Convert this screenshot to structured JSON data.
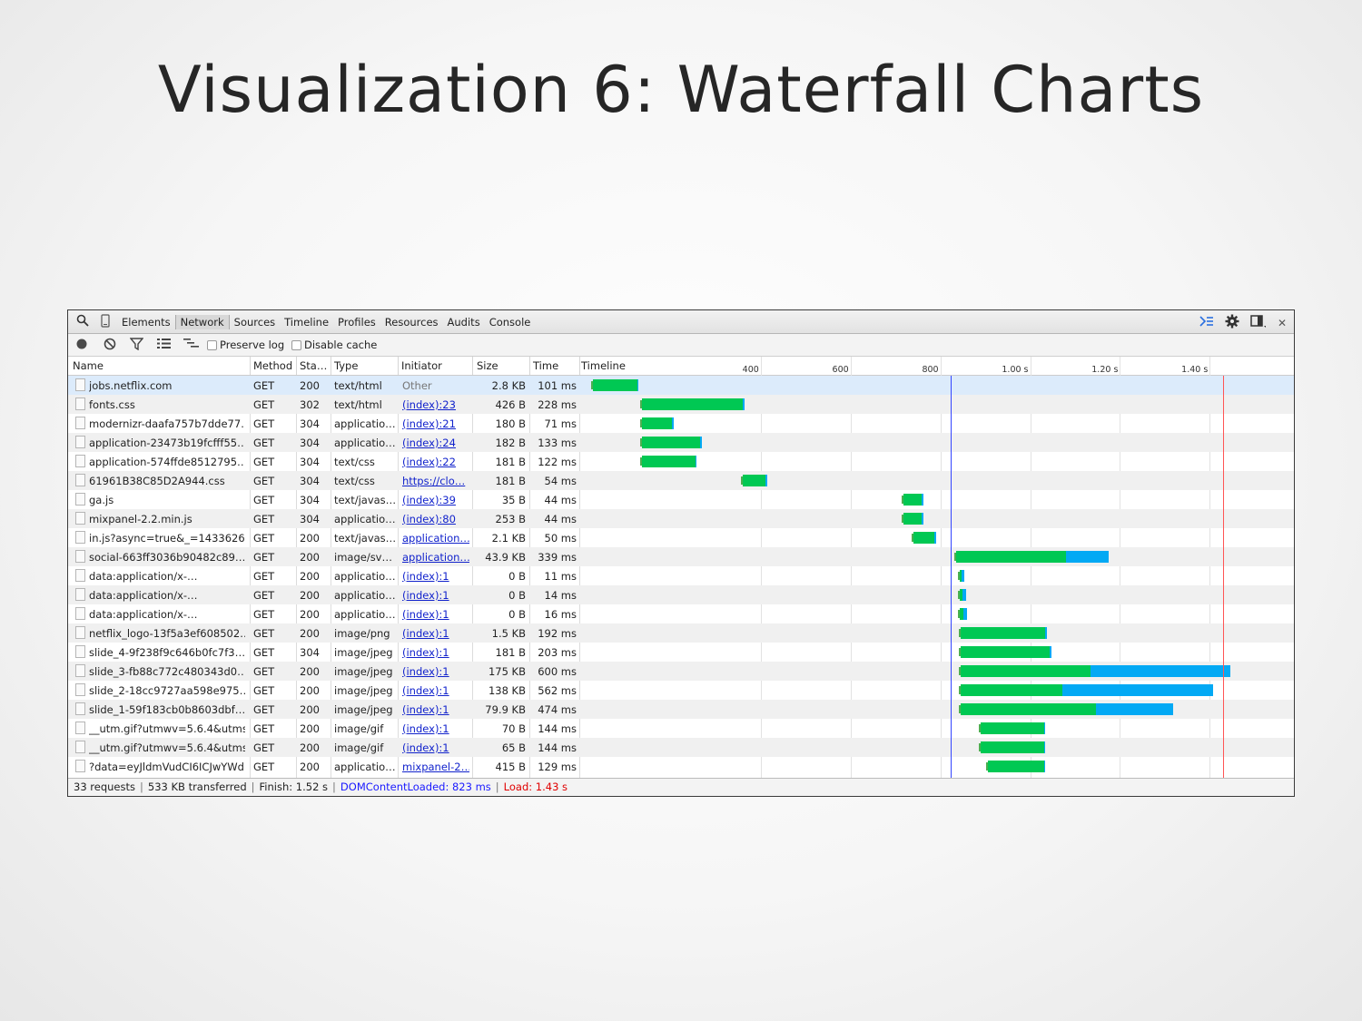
{
  "slide": {
    "title": "Visualization 6: Waterfall Charts"
  },
  "tabs": [
    "Elements",
    "Network",
    "Sources",
    "Timeline",
    "Profiles",
    "Resources",
    "Audits",
    "Console"
  ],
  "active_tab": "Network",
  "toolbar": {
    "preserve_log": "Preserve log",
    "disable_cache": "Disable cache"
  },
  "columns": {
    "name": "Name",
    "method": "Method",
    "status": "Sta…",
    "type": "Type",
    "initiator": "Initiator",
    "size": "Size",
    "time": "Time",
    "timeline": "Timeline"
  },
  "timeline_ticks": [
    {
      "label": "400 ms",
      "ms": 400
    },
    {
      "label": "600 ms",
      "ms": 600
    },
    {
      "label": "800 ms",
      "ms": 800
    },
    {
      "label": "1.00 s",
      "ms": 1000
    },
    {
      "label": "1.20 s",
      "ms": 1200
    },
    {
      "label": "1.40 s",
      "ms": 1400
    }
  ],
  "markers": {
    "dom_content_loaded_ms": 823,
    "load_ms": 1430
  },
  "requests": [
    {
      "name": "jobs.netflix.com",
      "method": "GET",
      "status": "200",
      "type": "text/html",
      "initiator": "Other",
      "initiator_link": false,
      "size": "2.8 KB",
      "time": "101 ms",
      "start_ms": 26,
      "wait_ms": 99,
      "recv_ms": 3
    },
    {
      "name": "fonts.css",
      "method": "GET",
      "status": "302",
      "type": "text/html",
      "initiator": "(index):23",
      "initiator_link": true,
      "size": "426 B",
      "time": "228 ms",
      "start_ms": 136,
      "wait_ms": 224,
      "recv_ms": 4
    },
    {
      "name": "modernizr-daafa757b7dde77…",
      "method": "GET",
      "status": "304",
      "type": "applicatio…",
      "initiator": "(index):21",
      "initiator_link": true,
      "size": "180 B",
      "time": "71 ms",
      "start_ms": 135,
      "wait_ms": 68,
      "recv_ms": 3
    },
    {
      "name": "application-23473b19fcfff55…",
      "method": "GET",
      "status": "304",
      "type": "applicatio…",
      "initiator": "(index):24",
      "initiator_link": true,
      "size": "182 B",
      "time": "133 ms",
      "start_ms": 135,
      "wait_ms": 130,
      "recv_ms": 3
    },
    {
      "name": "application-574ffde8512795…",
      "method": "GET",
      "status": "304",
      "type": "text/css",
      "initiator": "(index):22",
      "initiator_link": true,
      "size": "181 B",
      "time": "122 ms",
      "start_ms": 135,
      "wait_ms": 119,
      "recv_ms": 3
    },
    {
      "name": "61961B38C85D2A944.css",
      "method": "GET",
      "status": "304",
      "type": "text/css",
      "initiator": "https://clo…",
      "initiator_link": true,
      "size": "181 B",
      "time": "54 ms",
      "start_ms": 360,
      "wait_ms": 51,
      "recv_ms": 3
    },
    {
      "name": "ga.js",
      "method": "GET",
      "status": "304",
      "type": "text/javas…",
      "initiator": "(index):39",
      "initiator_link": true,
      "size": "35 B",
      "time": "44 ms",
      "start_ms": 718,
      "wait_ms": 41,
      "recv_ms": 3
    },
    {
      "name": "mixpanel-2.2.min.js",
      "method": "GET",
      "status": "304",
      "type": "applicatio…",
      "initiator": "(index):80",
      "initiator_link": true,
      "size": "253 B",
      "time": "44 ms",
      "start_ms": 718,
      "wait_ms": 41,
      "recv_ms": 3
    },
    {
      "name": "in.js?async=true&_=1433626…",
      "method": "GET",
      "status": "200",
      "type": "text/javas…",
      "initiator": "application…",
      "initiator_link": true,
      "size": "2.1 KB",
      "time": "50 ms",
      "start_ms": 740,
      "wait_ms": 46,
      "recv_ms": 4
    },
    {
      "name": "social-663ff3036b90482c89…",
      "method": "GET",
      "status": "200",
      "type": "image/sv…",
      "initiator": "application…",
      "initiator_link": true,
      "size": "43.9 KB",
      "time": "339 ms",
      "start_ms": 835,
      "wait_ms": 245,
      "recv_ms": 94
    },
    {
      "name": "data:application/x-…",
      "method": "GET",
      "status": "200",
      "type": "applicatio…",
      "initiator": "(index):1",
      "initiator_link": true,
      "size": "0 B",
      "time": "11 ms",
      "start_ms": 843,
      "wait_ms": 5,
      "recv_ms": 6
    },
    {
      "name": "data:application/x-…",
      "method": "GET",
      "status": "200",
      "type": "applicatio…",
      "initiator": "(index):1",
      "initiator_link": true,
      "size": "0 B",
      "time": "14 ms",
      "start_ms": 843,
      "wait_ms": 7,
      "recv_ms": 7
    },
    {
      "name": "data:application/x-…",
      "method": "GET",
      "status": "200",
      "type": "applicatio…",
      "initiator": "(index):1",
      "initiator_link": true,
      "size": "0 B",
      "time": "16 ms",
      "start_ms": 843,
      "wait_ms": 9,
      "recv_ms": 7
    },
    {
      "name": "netflix_logo-13f5a3ef608502…",
      "method": "GET",
      "status": "200",
      "type": "image/png",
      "initiator": "(index):1",
      "initiator_link": true,
      "size": "1.5 KB",
      "time": "192 ms",
      "start_ms": 845,
      "wait_ms": 188,
      "recv_ms": 4
    },
    {
      "name": "slide_4-9f238f9c646b0fc7f3…",
      "method": "GET",
      "status": "304",
      "type": "image/jpeg",
      "initiator": "(index):1",
      "initiator_link": true,
      "size": "181 B",
      "time": "203 ms",
      "start_ms": 845,
      "wait_ms": 198,
      "recv_ms": 5
    },
    {
      "name": "slide_3-fb88c772c480343d0…",
      "method": "GET",
      "status": "200",
      "type": "image/jpeg",
      "initiator": "(index):1",
      "initiator_link": true,
      "size": "175 KB",
      "time": "600 ms",
      "start_ms": 845,
      "wait_ms": 290,
      "recv_ms": 310
    },
    {
      "name": "slide_2-18cc9727aa598e975…",
      "method": "GET",
      "status": "200",
      "type": "image/jpeg",
      "initiator": "(index):1",
      "initiator_link": true,
      "size": "138 KB",
      "time": "562 ms",
      "start_ms": 845,
      "wait_ms": 227,
      "recv_ms": 335
    },
    {
      "name": "slide_1-59f183cb0b8603dbf…",
      "method": "GET",
      "status": "200",
      "type": "image/jpeg",
      "initiator": "(index):1",
      "initiator_link": true,
      "size": "79.9 KB",
      "time": "474 ms",
      "start_ms": 845,
      "wait_ms": 302,
      "recv_ms": 172
    },
    {
      "name": "__utm.gif?utmwv=5.6.4&utms…",
      "method": "GET",
      "status": "200",
      "type": "image/gif",
      "initiator": "(index):1",
      "initiator_link": true,
      "size": "70 B",
      "time": "144 ms",
      "start_ms": 890,
      "wait_ms": 142,
      "recv_ms": 2
    },
    {
      "name": "__utm.gif?utmwv=5.6.4&utms…",
      "method": "GET",
      "status": "200",
      "type": "image/gif",
      "initiator": "(index):1",
      "initiator_link": true,
      "size": "65 B",
      "time": "144 ms",
      "start_ms": 890,
      "wait_ms": 142,
      "recv_ms": 2
    },
    {
      "name": "?data=eyJldmVudCI6ICJwYWdl…",
      "method": "GET",
      "status": "200",
      "type": "applicatio…",
      "initiator": "mixpanel-2…",
      "initiator_link": true,
      "size": "415 B",
      "time": "129 ms",
      "start_ms": 905,
      "wait_ms": 127,
      "recv_ms": 2
    }
  ],
  "status_bar": {
    "requests": "33 requests",
    "transferred": "533 KB transferred",
    "finish": "Finish: 1.52 s",
    "dcl": "DOMContentLoaded: 823 ms",
    "load": "Load: 1.43 s"
  },
  "colors": {
    "waiting": "#00c853",
    "receiving": "#03a9f4",
    "dcl_line": "#3344ff",
    "load_line": "#ff5555"
  },
  "icons": [
    "search-icon",
    "device-icon",
    "record-icon",
    "clear-icon",
    "filter-icon",
    "list-view-icon",
    "overview-icon",
    "drawer-icon",
    "gear-icon",
    "dock-icon",
    "close-icon"
  ]
}
